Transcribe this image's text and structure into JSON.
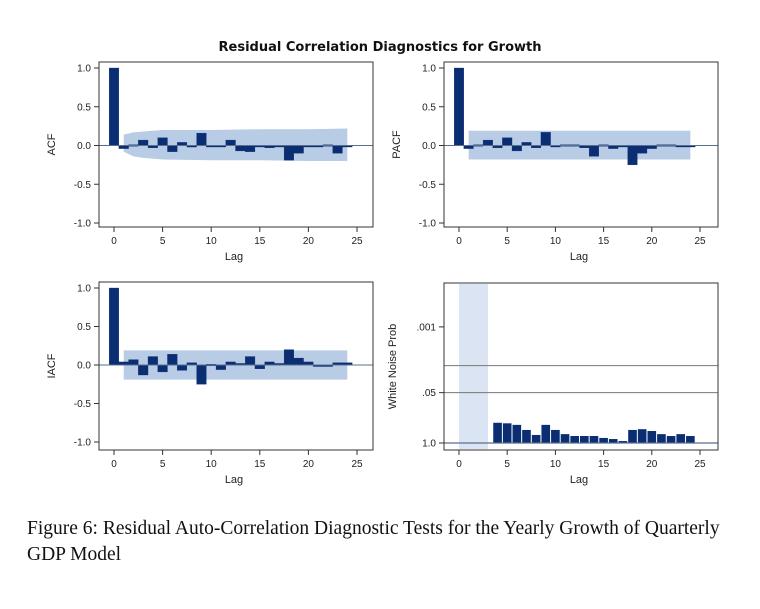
{
  "figure": {
    "title": "Residual Correlation Diagnostics for Growth",
    "caption": "Figure 6: Residual Auto-Correlation Diagnostic Tests for the Yearly Growth of Quarterly GDP Model",
    "colors": {
      "bar": "#0b2e73",
      "band": "#b8cce6",
      "band_light": "#dae4f2",
      "frame": "#333333",
      "zero_line": "#5a6f8f"
    }
  },
  "chart_data": [
    {
      "id": "acf",
      "type": "bar",
      "ylabel": "ACF",
      "xlabel": "Lag",
      "xlim": [
        0,
        25
      ],
      "ylim": [
        -1.0,
        1.0
      ],
      "xticks": [
        0,
        5,
        10,
        15,
        20,
        25
      ],
      "yticks": [
        "1.0",
        "0.5",
        "0.0",
        "-0.5",
        "-1.0"
      ],
      "x": [
        0,
        1,
        2,
        3,
        4,
        5,
        6,
        7,
        8,
        9,
        10,
        11,
        12,
        13,
        14,
        15,
        16,
        17,
        18,
        19,
        20,
        21,
        22,
        23,
        24
      ],
      "values": [
        1.0,
        -0.04,
        0.01,
        0.07,
        -0.03,
        0.1,
        -0.08,
        0.04,
        -0.02,
        0.16,
        0.0,
        0.0,
        0.07,
        -0.07,
        -0.08,
        0.0,
        -0.03,
        0.0,
        -0.19,
        -0.1,
        0.0,
        0.0,
        0.01,
        -0.1,
        0.0
      ],
      "confidence_band": {
        "lags": [
          1,
          2,
          3,
          4,
          5,
          10,
          15,
          20,
          24
        ],
        "upper": [
          0.14,
          0.17,
          0.18,
          0.19,
          0.2,
          0.2,
          0.21,
          0.21,
          0.22
        ],
        "lower": [
          -0.08,
          -0.14,
          -0.16,
          -0.17,
          -0.18,
          -0.19,
          -0.19,
          -0.2,
          -0.2
        ]
      }
    },
    {
      "id": "pacf",
      "type": "bar",
      "ylabel": "PACF",
      "xlabel": "Lag",
      "xlim": [
        0,
        25
      ],
      "ylim": [
        -1.0,
        1.0
      ],
      "xticks": [
        0,
        5,
        10,
        15,
        20,
        25
      ],
      "yticks": [
        "1.0",
        "0.5",
        "0.0",
        "-0.5",
        "-1.0"
      ],
      "x": [
        0,
        1,
        2,
        3,
        4,
        5,
        6,
        7,
        8,
        9,
        10,
        11,
        12,
        13,
        14,
        15,
        16,
        17,
        18,
        19,
        20,
        21,
        22,
        23,
        24
      ],
      "values": [
        1.0,
        -0.04,
        0.01,
        0.07,
        -0.03,
        0.1,
        -0.07,
        0.04,
        -0.03,
        0.17,
        0.0,
        0.01,
        0.01,
        -0.03,
        -0.14,
        0.01,
        -0.04,
        0.0,
        -0.25,
        -0.1,
        -0.04,
        0.01,
        0.01,
        -0.01,
        -0.01
      ],
      "confidence_band": {
        "lags": [
          1,
          24
        ],
        "upper": [
          0.19,
          0.19
        ],
        "lower": [
          -0.18,
          -0.18
        ]
      }
    },
    {
      "id": "iacf",
      "type": "bar",
      "ylabel": "IACF",
      "xlabel": "Lag",
      "xlim": [
        0,
        25
      ],
      "ylim": [
        -1.0,
        1.0
      ],
      "xticks": [
        0,
        5,
        10,
        15,
        20,
        25
      ],
      "yticks": [
        "1.0",
        "0.5",
        "0.0",
        "-0.5",
        "-1.0"
      ],
      "x": [
        0,
        1,
        2,
        3,
        4,
        5,
        6,
        7,
        8,
        9,
        10,
        11,
        12,
        13,
        14,
        15,
        16,
        17,
        18,
        19,
        20,
        21,
        22,
        23,
        24
      ],
      "values": [
        1.0,
        0.04,
        0.07,
        -0.13,
        0.11,
        -0.09,
        0.14,
        -0.07,
        0.03,
        -0.25,
        0.01,
        -0.06,
        0.04,
        0.02,
        0.11,
        -0.05,
        0.04,
        0.02,
        0.2,
        0.09,
        0.04,
        0.0,
        0.0,
        0.03,
        0.03
      ],
      "confidence_band": {
        "lags": [
          1,
          24
        ],
        "upper": [
          0.19,
          0.19
        ],
        "lower": [
          -0.19,
          -0.19
        ]
      }
    },
    {
      "id": "white_noise",
      "type": "bar",
      "ylabel": "White Noise Prob",
      "xlabel": "Lag",
      "xlim": [
        0,
        25
      ],
      "yscale": "-log10(p)",
      "yticks": [
        ".001",
        ".05",
        "1.0"
      ],
      "ytick_pvalues": [
        0.001,
        0.05,
        1.0
      ],
      "reference_lines_p": [
        0.01,
        0.05
      ],
      "shaded_lags": [
        0,
        3
      ],
      "xticks": [
        0,
        5,
        10,
        15,
        20,
        25
      ],
      "x": [
        4,
        5,
        6,
        7,
        8,
        9,
        10,
        11,
        12,
        13,
        14,
        15,
        16,
        17,
        18,
        19,
        20,
        21,
        22,
        23,
        24
      ],
      "p_values": [
        0.3,
        0.31,
        0.34,
        0.46,
        0.62,
        0.34,
        0.46,
        0.59,
        0.66,
        0.66,
        0.66,
        0.74,
        0.79,
        0.89,
        0.46,
        0.44,
        0.49,
        0.59,
        0.66,
        0.59,
        0.66
      ]
    }
  ]
}
